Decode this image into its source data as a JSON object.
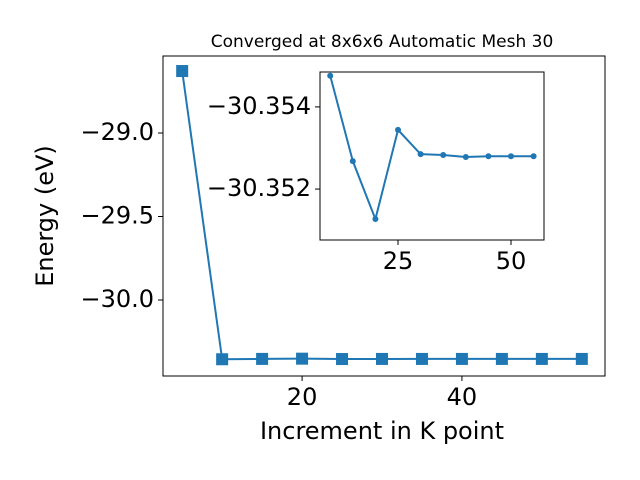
{
  "chart_data": [
    {
      "type": "line",
      "title": "Converged at 8x6x6 Automatic Mesh 30",
      "x_label": "Increment in K point",
      "y_label": "Energy (eV)",
      "marker": "square",
      "color": "#1f77b4",
      "x": [
        5,
        10,
        15,
        20,
        25,
        30,
        35,
        40,
        45,
        50,
        55
      ],
      "series": [
        {
          "color": "#1f77b4",
          "values": [
            -28.629,
            -30.35476,
            -30.35268,
            -30.35127,
            -30.35344,
            -30.35285,
            -30.35283,
            -30.35278,
            -30.3528,
            -30.3528,
            -30.3528
          ]
        }
      ],
      "xlim": [
        2.6,
        57.9
      ],
      "ylim": [
        -30.455,
        -28.539
      ],
      "xticks": [
        20,
        40
      ],
      "yticks": [
        {
          "value": -29.0,
          "label": "−29.0"
        },
        {
          "value": -29.5,
          "label": "−29.5"
        },
        {
          "value": -30.0,
          "label": "−30.0"
        }
      ]
    },
    {
      "type": "line",
      "marker": "circle",
      "color": "#1f77b4",
      "y_inverted": true,
      "x": [
        10,
        15,
        20,
        25,
        30,
        35,
        40,
        45,
        50,
        55
      ],
      "series": [
        {
          "color": "#1f77b4",
          "values": [
            -30.35476,
            -30.35268,
            -30.35127,
            -30.35344,
            -30.35285,
            -30.35283,
            -30.35278,
            -30.3528,
            -30.3528,
            -30.3528
          ]
        }
      ],
      "xlim": [
        7.74,
        57.3
      ],
      "ylim": [
        -30.35485,
        -30.35076
      ],
      "xticks": [
        25,
        50
      ],
      "yticks": [
        {
          "value": -30.354,
          "label": "−30.354"
        },
        {
          "value": -30.352,
          "label": "−30.352"
        }
      ]
    }
  ]
}
